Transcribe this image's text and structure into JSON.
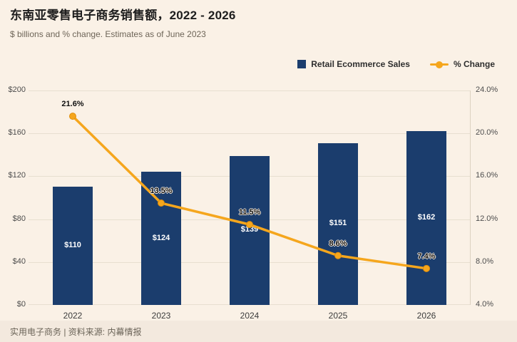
{
  "header": {
    "title": "东南亚零售电子商务销售额，2022 - 2026",
    "subtitle": "$ billions and % change. Estimates as of June 2023"
  },
  "footer": {
    "text": "实用电子商务 | 资料来源: 内幕情报"
  },
  "chart_data": {
    "type": "bar+line",
    "title": "东南亚零售电子商务销售额，2022 - 2026",
    "subtitle": "$ billions and % change. Estimates as of June 2023",
    "categories": [
      "2022",
      "2023",
      "2024",
      "2025",
      "2026"
    ],
    "series": [
      {
        "name": "Retail Ecommerce Sales",
        "type": "bar",
        "axis": "left",
        "unit": "$ billions",
        "values": [
          110,
          124,
          139,
          151,
          162
        ],
        "labels": [
          "$110",
          "$124",
          "$139",
          "$151",
          "$162"
        ],
        "color": "#1b3d6d"
      },
      {
        "name": "% Change",
        "type": "line",
        "axis": "right",
        "unit": "%",
        "values": [
          21.6,
          13.5,
          11.5,
          8.6,
          7.4
        ],
        "labels": [
          "21.6%",
          "13.5%",
          "11.5%",
          "8.6%",
          "7.4%"
        ],
        "color": "#f5a61d"
      }
    ],
    "left_axis": {
      "min": 0,
      "max": 200,
      "ticks": [
        "$0",
        "$40",
        "$80",
        "$120",
        "$160",
        "$200"
      ]
    },
    "right_axis": {
      "min": 4,
      "max": 24,
      "ticks": [
        "4.0%",
        "8.0%",
        "12.0%",
        "16.0%",
        "20.0%",
        "24.0%"
      ]
    },
    "grid": true,
    "legend_position": "top-right",
    "background_color": "#faf1e6"
  }
}
